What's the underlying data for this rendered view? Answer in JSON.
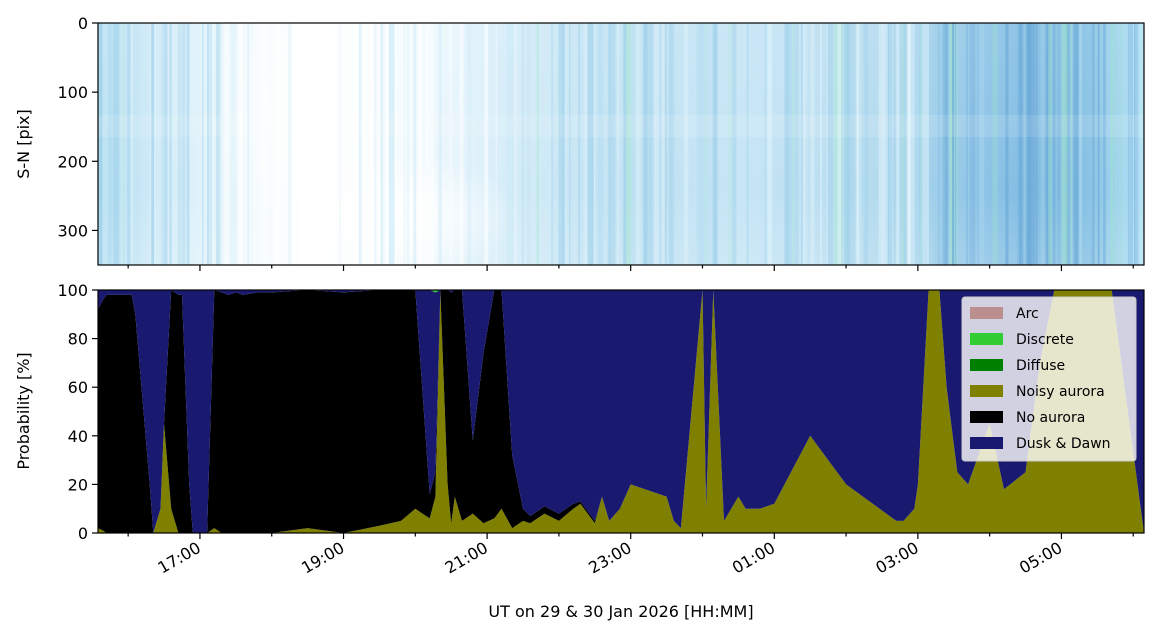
{
  "figure": {
    "top_panel": {
      "ylabel": "S-N [pix]",
      "ytick_labels": [
        "0",
        "100",
        "200",
        "300"
      ],
      "yticks": [
        0,
        100,
        200,
        300
      ],
      "ylim": [
        350,
        0
      ],
      "content": "keogram"
    },
    "bottom_panel": {
      "ylabel": "Probability [%]",
      "ytick_labels": [
        "0",
        "20",
        "40",
        "60",
        "80",
        "100"
      ],
      "yticks": [
        0,
        20,
        40,
        60,
        80,
        100
      ],
      "ylim": [
        0,
        100
      ]
    },
    "xlabel": "UT on 29 & 30 Jan 2026 [HH:MM]",
    "xtick_labels": [
      "17:00",
      "19:00",
      "21:00",
      "23:00",
      "01:00",
      "03:00",
      "05:00"
    ],
    "xtick_hours": [
      17,
      19,
      21,
      23,
      25,
      27,
      29
    ],
    "xlim_hours": [
      15.58,
      30.15
    ]
  },
  "chart_data": {
    "type": "area",
    "x_unit": "hour UT (values above 24 are on 30 Jan)",
    "y_unit": "percent",
    "stacked": true,
    "legend_position": "upper right",
    "x": [
      15.58,
      15.65,
      15.7,
      16.05,
      16.1,
      16.3,
      16.35,
      16.45,
      16.5,
      16.6,
      16.7,
      16.75,
      16.85,
      16.9,
      16.95,
      17.1,
      17.2,
      17.3,
      17.4,
      17.5,
      17.6,
      17.8,
      18.0,
      18.5,
      19.0,
      19.5,
      19.8,
      20.0,
      20.1,
      20.2,
      20.28,
      20.35,
      20.45,
      20.5,
      20.55,
      20.65,
      20.8,
      20.95,
      21.1,
      21.2,
      21.35,
      21.5,
      21.6,
      21.7,
      21.8,
      22.0,
      22.2,
      22.3,
      22.5,
      22.6,
      22.7,
      22.85,
      23.0,
      23.5,
      23.6,
      23.7,
      24.0,
      24.05,
      24.15,
      24.3,
      24.4,
      24.5,
      24.6,
      24.8,
      25.0,
      25.5,
      26.0,
      26.7,
      26.8,
      26.95,
      27.0,
      27.15,
      27.3,
      27.4,
      27.55,
      27.7,
      28.0,
      28.2,
      28.5,
      28.7,
      28.9,
      29.0,
      29.2,
      29.5,
      29.6,
      29.7,
      30.15
    ],
    "series": [
      {
        "name": "Arc",
        "color": "#bc8f8f",
        "values": [
          0,
          0,
          0,
          0,
          0,
          0,
          0,
          0,
          0,
          0,
          0,
          0,
          0,
          0,
          0,
          0,
          0,
          0,
          0,
          0,
          0,
          0,
          0,
          0,
          0,
          0,
          0,
          0,
          0,
          0,
          0,
          0,
          0,
          0,
          0,
          0,
          0,
          0,
          0,
          0,
          0,
          0,
          0,
          0,
          0,
          0,
          0,
          0,
          0,
          0,
          0,
          0,
          0,
          0,
          0,
          0,
          0,
          0,
          0,
          0,
          0,
          0,
          0,
          0,
          0,
          0,
          0,
          0,
          0,
          0,
          0,
          0,
          0,
          0,
          0,
          0,
          0,
          0,
          0,
          0,
          0,
          0,
          0,
          0,
          0,
          0,
          0
        ]
      },
      {
        "name": "Discrete",
        "color": "#32cd32",
        "values": [
          0,
          0,
          0,
          0,
          0,
          0,
          0,
          0,
          0,
          0,
          0,
          0,
          0,
          0,
          0,
          0,
          0,
          0,
          0,
          0,
          0,
          0,
          0,
          0,
          0,
          0,
          0,
          0,
          0,
          0,
          1,
          0,
          0,
          0,
          0,
          0,
          0,
          0,
          0,
          0,
          0,
          0,
          0,
          0,
          0,
          0,
          0,
          0,
          0,
          0,
          0,
          0,
          0,
          0,
          0,
          0,
          0,
          0,
          0,
          0,
          0,
          0,
          0,
          0,
          0,
          0,
          0,
          0,
          0,
          0,
          0,
          0,
          0,
          0,
          0,
          0,
          0,
          0,
          0,
          0,
          0,
          0,
          0,
          0,
          0,
          0,
          0
        ]
      },
      {
        "name": "Diffuse",
        "color": "#008000",
        "values": [
          0,
          0,
          0,
          0,
          0,
          0,
          0,
          0,
          0,
          0,
          0,
          0,
          0,
          0,
          0,
          0,
          0,
          0,
          0,
          0,
          0,
          0,
          0,
          0,
          0,
          0,
          0,
          0,
          0,
          0,
          0,
          0,
          0,
          0,
          0,
          0,
          0,
          0,
          0,
          0,
          0,
          0,
          0,
          0,
          0,
          0,
          0,
          0,
          0,
          0,
          0,
          0,
          0,
          0,
          0,
          0,
          0,
          0,
          0,
          0,
          0,
          0,
          0,
          0,
          0,
          0,
          0,
          0,
          0,
          0,
          0,
          0,
          0,
          0,
          0,
          0,
          0,
          0,
          0,
          0,
          0,
          0,
          0,
          0,
          0,
          0,
          0
        ]
      },
      {
        "name": "Noisy aurora",
        "color": "#808000",
        "values": [
          2,
          1,
          0,
          0,
          0,
          0,
          0,
          10,
          45,
          10,
          0,
          0,
          0,
          0,
          0,
          0,
          2,
          0,
          0,
          0,
          0,
          0,
          0,
          2,
          0,
          3,
          5,
          10,
          8,
          6,
          15,
          99,
          20,
          4,
          15,
          5,
          8,
          4,
          6,
          10,
          2,
          5,
          4,
          6,
          8,
          5,
          10,
          12,
          4,
          15,
          5,
          10,
          20,
          15,
          5,
          2,
          100,
          10,
          100,
          5,
          10,
          15,
          10,
          10,
          12,
          40,
          20,
          5,
          5,
          10,
          20,
          100,
          100,
          60,
          25,
          20,
          45,
          18,
          25,
          70,
          100,
          100,
          100,
          100,
          100,
          100,
          0
        ]
      },
      {
        "name": "No aurora",
        "color": "#000000",
        "values": [
          90,
          95,
          98,
          98,
          90,
          20,
          0,
          0,
          0,
          90,
          98,
          98,
          20,
          0,
          0,
          0,
          98,
          99,
          98,
          99,
          98,
          99,
          99,
          98,
          99,
          97,
          95,
          90,
          50,
          10,
          10,
          1,
          80,
          95,
          85,
          95,
          30,
          70,
          94,
          90,
          30,
          5,
          3,
          3,
          3,
          3,
          2,
          1,
          1,
          0,
          0,
          0,
          0,
          0,
          0,
          0,
          0,
          0,
          0,
          0,
          0,
          0,
          0,
          0,
          0,
          0,
          0,
          0,
          0,
          0,
          0,
          0,
          0,
          0,
          0,
          0,
          0,
          0,
          0,
          0,
          0,
          0,
          0,
          0,
          0,
          0,
          0
        ]
      },
      {
        "name": "Dusk & Dawn",
        "color": "#191970",
        "values": [
          8,
          4,
          2,
          2,
          10,
          80,
          100,
          90,
          55,
          0,
          2,
          2,
          80,
          100,
          100,
          100,
          0,
          1,
          2,
          1,
          2,
          1,
          1,
          0,
          1,
          0,
          0,
          0,
          42,
          84,
          74,
          0,
          0,
          1,
          0,
          0,
          62,
          26,
          0,
          0,
          68,
          90,
          93,
          91,
          89,
          92,
          88,
          87,
          95,
          85,
          95,
          90,
          80,
          85,
          95,
          98,
          0,
          90,
          0,
          95,
          90,
          85,
          90,
          90,
          88,
          60,
          80,
          95,
          95,
          90,
          80,
          0,
          0,
          40,
          75,
          80,
          55,
          82,
          75,
          30,
          0,
          0,
          0,
          0,
          0,
          0,
          100
        ]
      }
    ]
  },
  "legend": {
    "items": [
      {
        "label": "Arc",
        "color": "#bc8f8f"
      },
      {
        "label": "Discrete",
        "color": "#32cd32"
      },
      {
        "label": "Diffuse",
        "color": "#008000"
      },
      {
        "label": "Noisy aurora",
        "color": "#808000"
      },
      {
        "label": "No aurora",
        "color": "#000000"
      },
      {
        "label": "Dusk & Dawn",
        "color": "#191970"
      }
    ]
  }
}
